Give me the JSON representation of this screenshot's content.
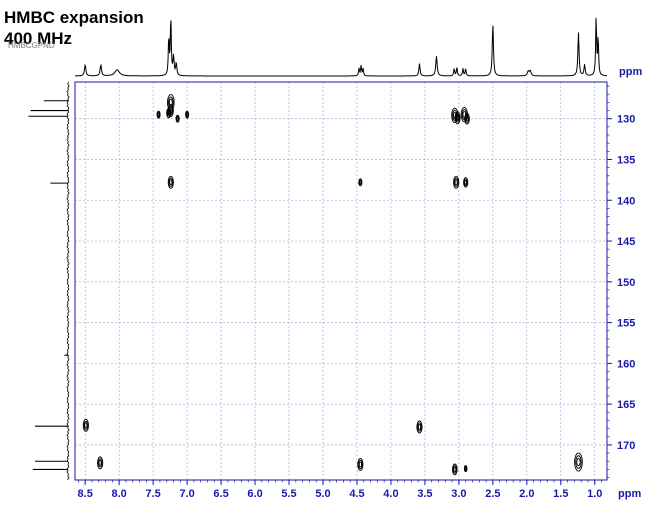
{
  "chart_data": {
    "type": "heatmap",
    "subtype": "2D NMR HMBC contour plot",
    "title": "HMBC expansion",
    "subtitle": "400 MHz",
    "tag": "HMBCGPND",
    "x_axis": {
      "unit": "ppm",
      "range": [
        8.65,
        0.82
      ],
      "reversed": true,
      "ticks": [
        8.5,
        8.0,
        7.5,
        7.0,
        6.5,
        6.0,
        5.5,
        5.0,
        4.5,
        4.0,
        3.5,
        3.0,
        2.5,
        2.0,
        1.5,
        1.0
      ],
      "tick_labels": [
        "8.5",
        "8.0",
        "7.5",
        "7.0",
        "6.5",
        "6.0",
        "5.5",
        "5.0",
        "4.5",
        "4.0",
        "3.5",
        "3.0",
        "2.5",
        "2.0",
        "1.5",
        "1.0"
      ]
    },
    "y_axis": {
      "unit": "ppm",
      "range": [
        125.5,
        174.3
      ],
      "reversed": true,
      "position": "right",
      "ticks": [
        130,
        135,
        140,
        145,
        150,
        155,
        160,
        165,
        170
      ],
      "tick_labels": [
        "130",
        "135",
        "140",
        "145",
        "150",
        "155",
        "160",
        "165",
        "170"
      ]
    },
    "grid": true,
    "proton_spectrum": [
      {
        "ppm": 8.5,
        "h": 0.18,
        "w": 0.012
      },
      {
        "ppm": 8.27,
        "h": 0.18,
        "w": 0.012
      },
      {
        "ppm": 8.03,
        "h": 0.1,
        "w": 0.04
      },
      {
        "ppm": 7.27,
        "h": 0.62,
        "w": 0.008
      },
      {
        "ppm": 7.24,
        "h": 0.95,
        "w": 0.008
      },
      {
        "ppm": 7.2,
        "h": 0.3,
        "w": 0.01
      },
      {
        "ppm": 7.16,
        "h": 0.2,
        "w": 0.01
      },
      {
        "ppm": 4.47,
        "h": 0.12,
        "w": 0.008
      },
      {
        "ppm": 4.44,
        "h": 0.16,
        "w": 0.008
      },
      {
        "ppm": 4.41,
        "h": 0.12,
        "w": 0.008
      },
      {
        "ppm": 3.58,
        "h": 0.2,
        "w": 0.01
      },
      {
        "ppm": 3.33,
        "h": 0.32,
        "w": 0.012
      },
      {
        "ppm": 3.07,
        "h": 0.12,
        "w": 0.008
      },
      {
        "ppm": 3.03,
        "h": 0.14,
        "w": 0.008
      },
      {
        "ppm": 2.94,
        "h": 0.12,
        "w": 0.008
      },
      {
        "ppm": 2.9,
        "h": 0.12,
        "w": 0.008
      },
      {
        "ppm": 2.5,
        "h": 0.85,
        "w": 0.01
      },
      {
        "ppm": 1.98,
        "h": 0.07,
        "w": 0.015
      },
      {
        "ppm": 1.95,
        "h": 0.08,
        "w": 0.015
      },
      {
        "ppm": 1.24,
        "h": 0.7,
        "w": 0.01
      },
      {
        "ppm": 1.15,
        "h": 0.18,
        "w": 0.01
      },
      {
        "ppm": 0.98,
        "h": 0.95,
        "w": 0.008
      },
      {
        "ppm": 0.95,
        "h": 0.6,
        "w": 0.008
      }
    ],
    "carbon_projection": [
      {
        "ppm": 127.8,
        "len": 0.55
      },
      {
        "ppm": 129.0,
        "len": 0.85
      },
      {
        "ppm": 129.7,
        "len": 0.9
      },
      {
        "ppm": 137.9,
        "len": 0.4
      },
      {
        "ppm": 159.0,
        "len": 0.08
      },
      {
        "ppm": 167.7,
        "len": 0.75
      },
      {
        "ppm": 172.0,
        "len": 0.75
      },
      {
        "ppm": 173.0,
        "len": 0.8
      }
    ],
    "cross_peaks": [
      {
        "h": 7.24,
        "c": 128.0,
        "size": 1.3
      },
      {
        "h": 7.24,
        "c": 129.0,
        "size": 1.0
      },
      {
        "h": 7.42,
        "c": 129.5,
        "size": 0.6
      },
      {
        "h": 7.27,
        "c": 129.3,
        "size": 0.8
      },
      {
        "h": 7.14,
        "c": 130.0,
        "size": 0.6
      },
      {
        "h": 7.0,
        "c": 129.5,
        "size": 0.6
      },
      {
        "h": 3.06,
        "c": 129.6,
        "size": 1.2
      },
      {
        "h": 3.02,
        "c": 129.9,
        "size": 1.0
      },
      {
        "h": 2.92,
        "c": 129.5,
        "size": 1.2
      },
      {
        "h": 2.88,
        "c": 130.0,
        "size": 0.9
      },
      {
        "h": 7.24,
        "c": 137.8,
        "size": 1.0
      },
      {
        "h": 4.45,
        "c": 137.8,
        "size": 0.6
      },
      {
        "h": 3.04,
        "c": 137.8,
        "size": 1.0
      },
      {
        "h": 2.9,
        "c": 137.8,
        "size": 0.8
      },
      {
        "h": 8.49,
        "c": 167.6,
        "size": 1.0
      },
      {
        "h": 3.58,
        "c": 167.8,
        "size": 1.0
      },
      {
        "h": 8.28,
        "c": 172.2,
        "size": 1.0
      },
      {
        "h": 4.45,
        "c": 172.4,
        "size": 1.0
      },
      {
        "h": 3.06,
        "c": 173.0,
        "size": 0.9
      },
      {
        "h": 2.9,
        "c": 172.9,
        "size": 0.5
      },
      {
        "h": 1.24,
        "c": 172.1,
        "size": 1.5
      }
    ]
  }
}
